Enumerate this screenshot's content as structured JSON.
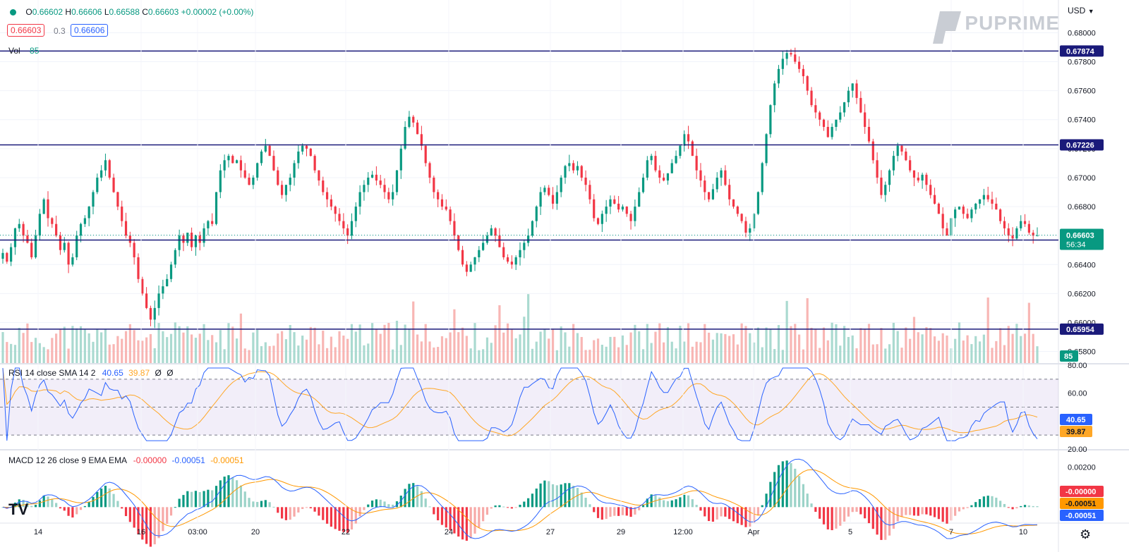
{
  "header": {
    "ohlc": [
      {
        "label": "O",
        "value": "0.66602"
      },
      {
        "label": "H",
        "value": "0.66606"
      },
      {
        "label": "L",
        "value": "0.66588"
      },
      {
        "label": "C",
        "value": "0.66603"
      }
    ],
    "change": "+0.00002 (+0.00%)",
    "bid": "0.66603",
    "spread": "0.3",
    "ask": "0.66606",
    "vol_label": "Vol",
    "vol_value": "85",
    "currency": "USD",
    "brand": "PUPRIME"
  },
  "chart_data": [
    {
      "type": "candlestick",
      "name": "price",
      "y_axis_ticks": [
        "0.68000",
        "0.67800",
        "0.67600",
        "0.67400",
        "0.67200",
        "0.67000",
        "0.66800",
        "0.66600",
        "0.66400",
        "0.66200",
        "0.66000",
        "0.65800"
      ],
      "ylim": [
        0.6572,
        0.6808
      ],
      "x_tick_labels": [
        "14",
        "16",
        "03:00",
        "20",
        "22",
        "24",
        "27",
        "29",
        "12:00",
        "Apr",
        "5",
        "7",
        "10"
      ],
      "horizontal_levels": [
        0.67874,
        0.67226,
        0.66569,
        0.65954
      ],
      "last_price": "0.66603",
      "countdown": "56:34",
      "level_labels": [
        "0.67874",
        "0.67226",
        "0.66569",
        "0.65954"
      ],
      "close_series": [
        0.6648,
        0.6642,
        0.6652,
        0.6665,
        0.6668,
        0.666,
        0.6655,
        0.6645,
        0.666,
        0.6675,
        0.6685,
        0.6672,
        0.6668,
        0.666,
        0.665,
        0.6655,
        0.664,
        0.6645,
        0.666,
        0.6668,
        0.6672,
        0.668,
        0.669,
        0.67,
        0.6705,
        0.6712,
        0.67,
        0.669,
        0.668,
        0.667,
        0.666,
        0.6655,
        0.6645,
        0.663,
        0.662,
        0.661,
        0.6602,
        0.661,
        0.662,
        0.6625,
        0.663,
        0.664,
        0.665,
        0.666,
        0.6655,
        0.6662,
        0.6652,
        0.666,
        0.6655,
        0.6665,
        0.667,
        0.6668,
        0.669,
        0.6705,
        0.6712,
        0.6715,
        0.671,
        0.6712,
        0.6705,
        0.67,
        0.6695,
        0.67,
        0.671,
        0.6718,
        0.6722,
        0.6715,
        0.6705,
        0.6695,
        0.6688,
        0.6695,
        0.67,
        0.671,
        0.6718,
        0.6722,
        0.672,
        0.6715,
        0.6705,
        0.6698,
        0.669,
        0.6685,
        0.668,
        0.6675,
        0.667,
        0.6665,
        0.666,
        0.667,
        0.668,
        0.669,
        0.6695,
        0.67,
        0.6702,
        0.6698,
        0.6695,
        0.669,
        0.6685,
        0.669,
        0.6705,
        0.672,
        0.6735,
        0.6742,
        0.6738,
        0.673,
        0.6722,
        0.671,
        0.67,
        0.669,
        0.6685,
        0.668,
        0.6678,
        0.667,
        0.666,
        0.665,
        0.664,
        0.6635,
        0.664,
        0.6645,
        0.665,
        0.6655,
        0.666,
        0.6665,
        0.666,
        0.6652,
        0.6645,
        0.6642,
        0.664,
        0.6645,
        0.665,
        0.6655,
        0.666,
        0.667,
        0.668,
        0.669,
        0.6693,
        0.6688,
        0.6682,
        0.669,
        0.67,
        0.6708,
        0.671,
        0.6705,
        0.6708,
        0.67,
        0.6695,
        0.6685,
        0.6672,
        0.6668,
        0.6675,
        0.668,
        0.6685,
        0.6682,
        0.6678,
        0.668,
        0.6675,
        0.667,
        0.668,
        0.669,
        0.67,
        0.6712,
        0.6715,
        0.6705,
        0.67,
        0.6698,
        0.6703,
        0.671,
        0.6715,
        0.6722,
        0.673,
        0.6725,
        0.6715,
        0.6705,
        0.6698,
        0.669,
        0.6685,
        0.6692,
        0.67,
        0.6705,
        0.6695,
        0.6685,
        0.668,
        0.6675,
        0.667,
        0.6662,
        0.6665,
        0.6675,
        0.669,
        0.671,
        0.673,
        0.675,
        0.6765,
        0.6775,
        0.6782,
        0.6786,
        0.6785,
        0.678,
        0.6775,
        0.677,
        0.676,
        0.675,
        0.6745,
        0.674,
        0.6735,
        0.6728,
        0.6735,
        0.674,
        0.6745,
        0.6752,
        0.676,
        0.6765,
        0.6755,
        0.6745,
        0.6735,
        0.6725,
        0.6712,
        0.67,
        0.6688,
        0.6695,
        0.6705,
        0.6715,
        0.6722,
        0.6718,
        0.6712,
        0.6705,
        0.67,
        0.6698,
        0.6702,
        0.6695,
        0.6688,
        0.6682,
        0.6675,
        0.6665,
        0.666,
        0.6672,
        0.6678,
        0.668,
        0.6675,
        0.6672,
        0.6678,
        0.6682,
        0.6685,
        0.6688,
        0.6685,
        0.6682,
        0.6678,
        0.667,
        0.6665,
        0.666,
        0.6658,
        0.6665,
        0.667,
        0.6668,
        0.6662,
        0.666,
        0.666
      ]
    },
    {
      "type": "bar",
      "name": "volume",
      "legend": "Vol",
      "last_value": "85"
    },
    {
      "type": "line",
      "name": "rsi",
      "legend": "RSI 14 close SMA 14 2",
      "values_text": [
        "40.65",
        "39.87",
        "Ø",
        "Ø"
      ],
      "y_axis_ticks": [
        "80.00",
        "60.00",
        "20.00"
      ],
      "ylim": [
        20,
        80
      ],
      "band": [
        30,
        70
      ],
      "last_rsi": "40.65",
      "last_sma": "39.87"
    },
    {
      "type": "line",
      "name": "macd",
      "legend": "MACD 12 26 close 9 EMA EMA",
      "values_text": [
        "-0.00000",
        "-0.00051",
        "-0.00051"
      ],
      "y_axis_ticks": [
        "0.00200"
      ],
      "ylim": [
        -0.0008,
        0.0028
      ],
      "last_hist": "-0.00000",
      "last_signal": "-0.00051",
      "last_macd": "-0.00051"
    }
  ],
  "colors": {
    "up": "#089981",
    "down": "#f23645",
    "up_light": "#9bd3c8",
    "down_light": "#f7a9a7",
    "level": "#1a1a7a",
    "rsi": "#2962ff",
    "sma": "#ffa726",
    "macd": "#2962ff",
    "signal": "#ff9800",
    "rsi_band": "#7e57c2"
  },
  "footer": {
    "tv_logo": "TV",
    "settings_icon": "gear-icon"
  }
}
